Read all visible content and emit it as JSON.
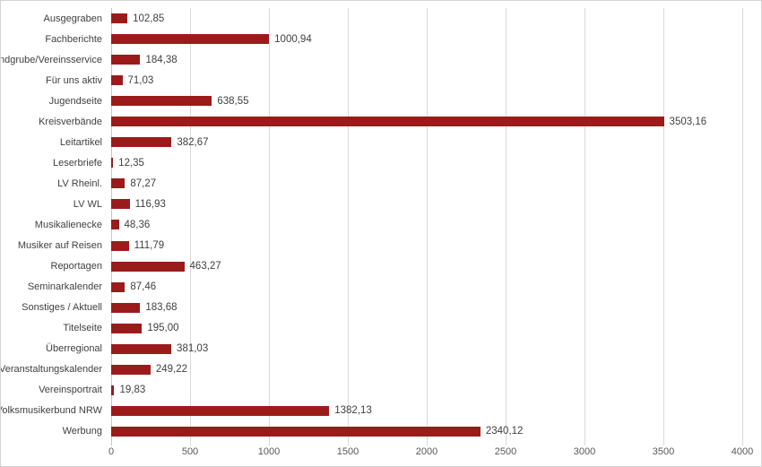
{
  "chart_data": {
    "type": "bar",
    "orientation": "horizontal",
    "title": "",
    "xlabel": "",
    "ylabel": "",
    "grid": true,
    "legend": false,
    "xlim": [
      0,
      4000
    ],
    "x_ticks": [
      "0",
      "500",
      "1000",
      "1500",
      "2000",
      "2500",
      "3000",
      "3500",
      "4000"
    ],
    "categories": [
      "Ausgegraben",
      "Fachberichte",
      "Fundgrube/Vereinsservice",
      "Für uns aktiv",
      "Jugendseite",
      "Kreisverbände",
      "Leitartikel",
      "Leserbriefe",
      "LV Rheinl.",
      "LV WL",
      "Musikalienecke",
      "Musiker auf Reisen",
      "Reportagen",
      "Seminarkalender",
      "Sonstiges / Aktuell",
      "Titelseite",
      "Überregional",
      "Veranstaltungskalender",
      "Vereinsportrait",
      "Volksmusikerbund NRW",
      "Werbung"
    ],
    "values": [
      102.85,
      1000.94,
      184.38,
      71.03,
      638.55,
      3503.16,
      382.67,
      12.35,
      87.27,
      116.93,
      48.36,
      111.79,
      463.27,
      87.46,
      183.68,
      195.0,
      381.03,
      249.22,
      19.83,
      1382.13,
      2340.12
    ],
    "value_labels": [
      "102,85",
      "1000,94",
      "184,38",
      "71,03",
      "638,55",
      "3503,16",
      "382,67",
      "12,35",
      "87,27",
      "116,93",
      "48,36",
      "111,79",
      "463,27",
      "87,46",
      "183,68",
      "195,00",
      "381,03",
      "249,22",
      "19,83",
      "1382,13",
      "2340,12"
    ],
    "colors": {
      "bar": "#9b1b1b",
      "gridline": "#d9d9d9",
      "axis_line": "#c6c6c6",
      "label_text": "#404040",
      "tick_text": "#595959",
      "background": "#ffffff",
      "border": "#d3d3d3"
    }
  }
}
